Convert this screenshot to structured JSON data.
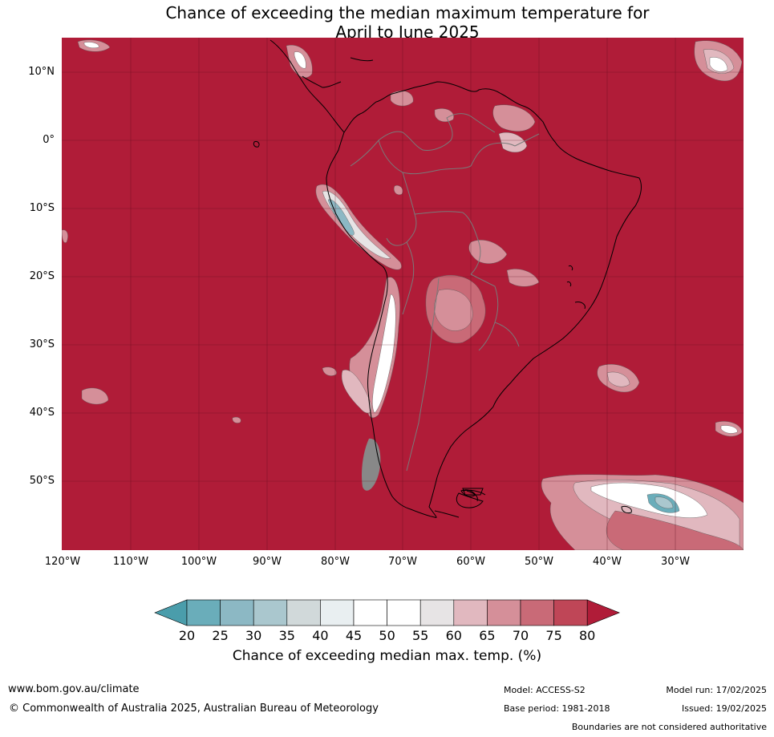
{
  "title": {
    "line1": "Chance of exceeding the median maximum temperature for",
    "line2": "April to June 2025"
  },
  "map": {
    "background_color": "#b01c38",
    "latitude_labels": [
      "10°N",
      "0°",
      "10°S",
      "20°S",
      "30°S",
      "40°S",
      "50°S"
    ],
    "longitude_labels": [
      "120°W",
      "110°W",
      "100°W",
      "90°W",
      "80°W",
      "70°W",
      "60°W",
      "50°W",
      "40°W",
      "30°W"
    ]
  },
  "colorbar": {
    "ticks": [
      "20",
      "25",
      "30",
      "35",
      "40",
      "45",
      "50",
      "55",
      "60",
      "65",
      "70",
      "75",
      "80"
    ],
    "colors": [
      "#6aadba",
      "#8cb8c4",
      "#aac7ce",
      "#d1d9da",
      "#e9eff1",
      "#ffffff",
      "#ffffff",
      "#e7e4e5",
      "#e1b8bf",
      "#d58f99",
      "#c96a77",
      "#bf4657",
      "#b01c38"
    ],
    "under_color": "#4a9dab",
    "over_color": "#b01c38",
    "label": "Chance of exceeding median max. temp. (%)"
  },
  "footer": {
    "website": "www.bom.gov.au/climate",
    "copyright": "© Commonwealth of Australia 2025, Australian Bureau of Meteorology",
    "model": "Model: ACCESS-S2",
    "base_period": "Base period: 1981-2018",
    "model_run": "Model run: 17/02/2025",
    "issued": "Issued: 19/02/2025",
    "disclaimer": "Boundaries are not considered authoritative"
  }
}
